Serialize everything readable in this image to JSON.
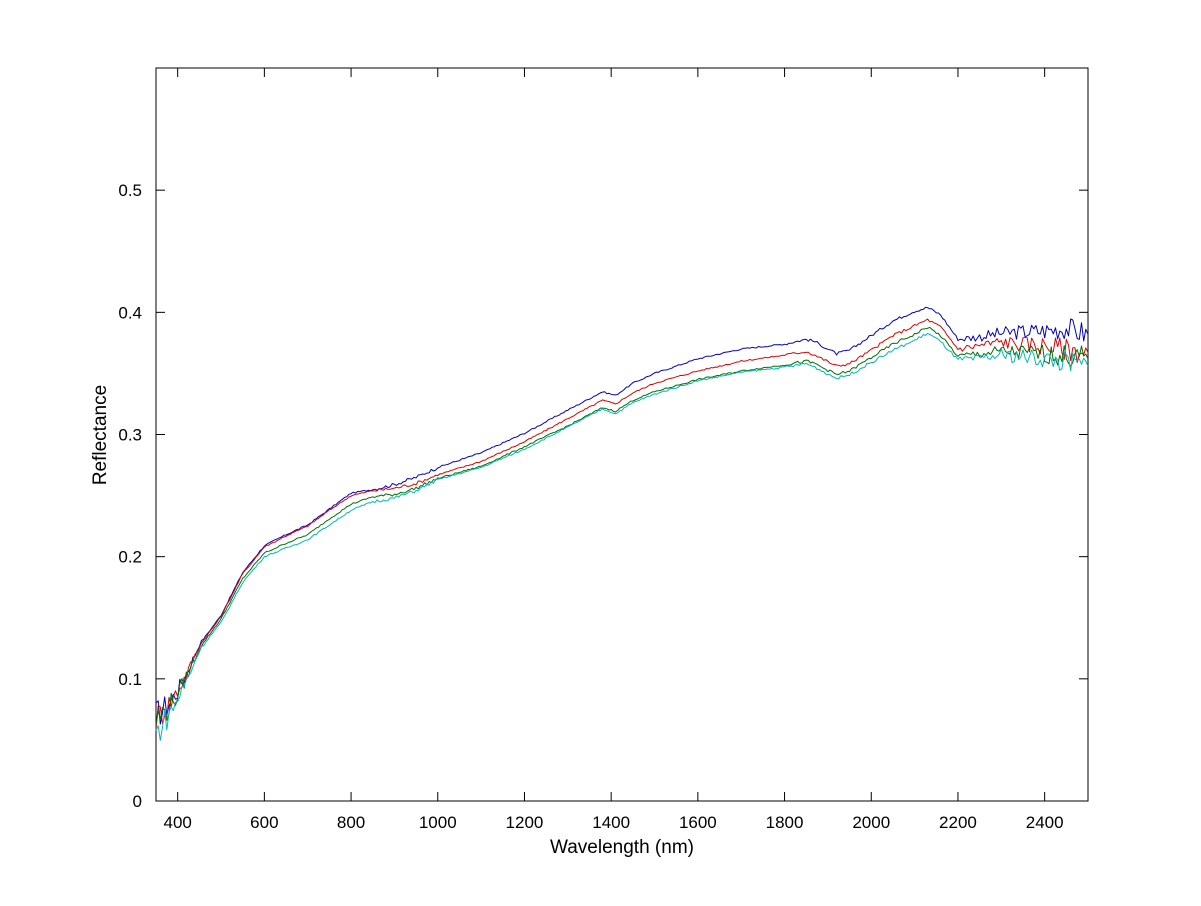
{
  "chart_data": {
    "type": "line",
    "title": "",
    "xlabel": "Wavelength (nm)",
    "ylabel": "Reflectance",
    "xlim": [
      350,
      2500
    ],
    "ylim": [
      0,
      0.6
    ],
    "xticks": [
      400,
      600,
      800,
      1000,
      1200,
      1400,
      1600,
      1800,
      2000,
      2200,
      2400
    ],
    "yticks": [
      0,
      0.1,
      0.2,
      0.3,
      0.4,
      0.5
    ],
    "ytick_labels": [
      "0",
      "0.1",
      "0.2",
      "0.3",
      "0.4",
      "0.5"
    ],
    "grid": false,
    "legend": "none",
    "x": [
      350,
      375,
      400,
      425,
      450,
      475,
      500,
      550,
      600,
      650,
      700,
      750,
      800,
      850,
      900,
      950,
      1000,
      1100,
      1200,
      1300,
      1380,
      1410,
      1450,
      1500,
      1600,
      1700,
      1800,
      1850,
      1870,
      1920,
      1950,
      2000,
      2050,
      2100,
      2130,
      2160,
      2200,
      2250,
      2300,
      2350,
      2400,
      2450,
      2500
    ],
    "series": [
      {
        "color": "#0000c0",
        "values": [
          0.07,
          0.078,
          0.09,
          0.108,
          0.128,
          0.14,
          0.152,
          0.187,
          0.209,
          0.218,
          0.226,
          0.239,
          0.252,
          0.255,
          0.259,
          0.265,
          0.273,
          0.285,
          0.301,
          0.32,
          0.335,
          0.332,
          0.342,
          0.35,
          0.362,
          0.37,
          0.374,
          0.378,
          0.376,
          0.366,
          0.369,
          0.381,
          0.393,
          0.401,
          0.404,
          0.398,
          0.378,
          0.38,
          0.383,
          0.384,
          0.385,
          0.387,
          0.382
        ]
      },
      {
        "color": "#e00000",
        "values": [
          0.068,
          0.077,
          0.09,
          0.107,
          0.127,
          0.139,
          0.151,
          0.186,
          0.208,
          0.217,
          0.225,
          0.238,
          0.25,
          0.254,
          0.256,
          0.26,
          0.267,
          0.278,
          0.294,
          0.313,
          0.328,
          0.325,
          0.334,
          0.342,
          0.352,
          0.36,
          0.365,
          0.368,
          0.365,
          0.356,
          0.358,
          0.369,
          0.381,
          0.389,
          0.394,
          0.388,
          0.37,
          0.373,
          0.376,
          0.374,
          0.373,
          0.37,
          0.367
        ]
      },
      {
        "color": "#007000",
        "values": [
          0.066,
          0.075,
          0.087,
          0.105,
          0.125,
          0.137,
          0.149,
          0.182,
          0.203,
          0.211,
          0.218,
          0.231,
          0.243,
          0.249,
          0.251,
          0.256,
          0.264,
          0.274,
          0.29,
          0.307,
          0.322,
          0.319,
          0.328,
          0.335,
          0.345,
          0.352,
          0.357,
          0.36,
          0.358,
          0.349,
          0.352,
          0.363,
          0.374,
          0.382,
          0.388,
          0.381,
          0.364,
          0.366,
          0.368,
          0.367,
          0.366,
          0.364,
          0.362
        ]
      },
      {
        "color": "#00b8b8",
        "values": [
          0.055,
          0.068,
          0.083,
          0.102,
          0.123,
          0.135,
          0.146,
          0.179,
          0.2,
          0.207,
          0.214,
          0.226,
          0.238,
          0.245,
          0.248,
          0.254,
          0.263,
          0.273,
          0.288,
          0.306,
          0.321,
          0.317,
          0.326,
          0.333,
          0.344,
          0.351,
          0.355,
          0.358,
          0.355,
          0.346,
          0.349,
          0.359,
          0.369,
          0.377,
          0.383,
          0.376,
          0.361,
          0.362,
          0.365,
          0.364,
          0.362,
          0.359,
          0.356
        ]
      }
    ]
  }
}
